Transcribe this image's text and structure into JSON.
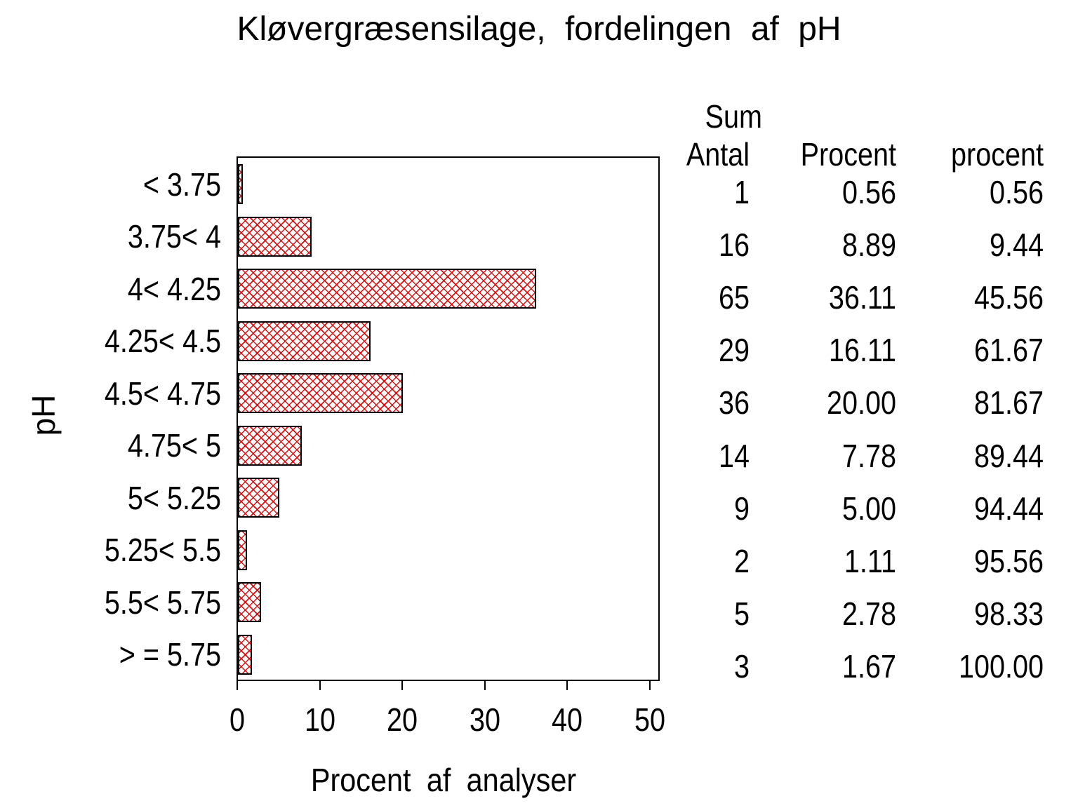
{
  "title": "Kløvergræsensilage, fordelingen af pH",
  "chart_data": {
    "type": "bar",
    "orientation": "horizontal",
    "title": "Kløvergræsensilage, fordelingen af pH",
    "xlabel": "Procent af analyser",
    "ylabel": "pH",
    "xlim": [
      0,
      50
    ],
    "xticks": [
      "0",
      "10",
      "20",
      "30",
      "40",
      "50"
    ],
    "grid": false,
    "legend": "none",
    "bar_fill": "red-crosshatch",
    "bar_color": "#dd1111",
    "bar_border_color": "#000000",
    "categories": [
      "< 3.75",
      "3.75< 4",
      "4< 4.25",
      "4.25< 4.5",
      "4.5< 4.75",
      "4.75< 5",
      "5< 5.25",
      "5.25< 5.5",
      "5.5< 5.75",
      "> = 5.75"
    ],
    "values": [
      0.56,
      8.89,
      36.11,
      16.11,
      20.0,
      7.78,
      5.0,
      1.11,
      2.78,
      1.67
    ]
  },
  "table": {
    "headers": {
      "antal": "Antal",
      "procent": "Procent",
      "sum_top": "Sum",
      "sum_bottom": "procent"
    },
    "rows": [
      {
        "antal": "1",
        "procent": "0.56",
        "sum": "0.56"
      },
      {
        "antal": "16",
        "procent": "8.89",
        "sum": "9.44"
      },
      {
        "antal": "65",
        "procent": "36.11",
        "sum": "45.56"
      },
      {
        "antal": "29",
        "procent": "16.11",
        "sum": "61.67"
      },
      {
        "antal": "36",
        "procent": "20.00",
        "sum": "81.67"
      },
      {
        "antal": "14",
        "procent": "7.78",
        "sum": "89.44"
      },
      {
        "antal": "9",
        "procent": "5.00",
        "sum": "94.44"
      },
      {
        "antal": "2",
        "procent": "1.11",
        "sum": "95.56"
      },
      {
        "antal": "5",
        "procent": "2.78",
        "sum": "98.33"
      },
      {
        "antal": "3",
        "procent": "1.67",
        "sum": "100.00"
      }
    ]
  }
}
